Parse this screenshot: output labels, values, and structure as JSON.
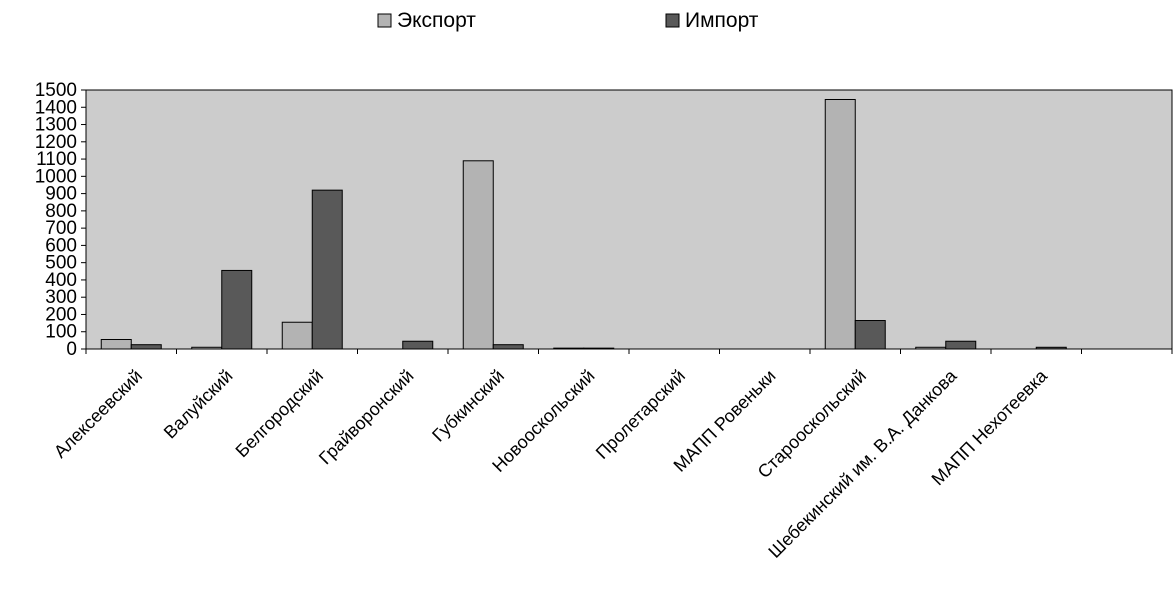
{
  "chart_data": {
    "type": "bar",
    "categories": [
      "Алексеевский",
      "Валуйский",
      "Белгородский",
      "Грайворонский",
      "Губкинский",
      "Новооскольский",
      "Пролетарский",
      "МАПП Ровеньки",
      "Старооскольский",
      "Шебекинский им. В.А. Данкова",
      "МАПП Нехотеевка",
      ""
    ],
    "series": [
      {
        "name": "Экспорт",
        "color": "#b3b3b3",
        "values": [
          55,
          10,
          155,
          0,
          1090,
          5,
          0,
          0,
          1445,
          10,
          0,
          0
        ]
      },
      {
        "name": "Импорт",
        "color": "#595959",
        "values": [
          25,
          455,
          920,
          45,
          25,
          5,
          0,
          0,
          165,
          45,
          10,
          0
        ]
      }
    ],
    "yticks": [
      0,
      100,
      200,
      300,
      400,
      500,
      600,
      700,
      800,
      900,
      1000,
      1100,
      1200,
      1300,
      1400,
      1500
    ],
    "ylim": [
      0,
      1500
    ],
    "grid": false,
    "plot_background": "#cccccc",
    "legend_position": "top"
  }
}
